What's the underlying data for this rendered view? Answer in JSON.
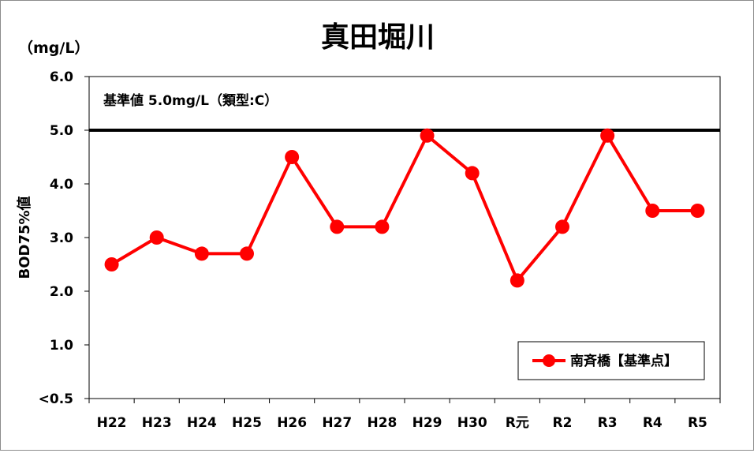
{
  "chart_data": {
    "type": "line",
    "title": "真田堀川",
    "unit_label": "（mg/L）",
    "ylabel": "BOD75%値",
    "xlabel": "",
    "categories": [
      "H22",
      "H23",
      "H24",
      "H25",
      "H26",
      "H27",
      "H28",
      "H29",
      "H30",
      "R元",
      "R2",
      "R3",
      "R4",
      "R5"
    ],
    "series": [
      {
        "name": "南斉橋【基準点】",
        "values": [
          2.5,
          3.0,
          2.7,
          2.7,
          4.5,
          3.2,
          3.2,
          4.9,
          4.2,
          2.2,
          3.2,
          4.9,
          3.5,
          3.5
        ],
        "color": "#ff0000"
      }
    ],
    "ylim": [
      0,
      6
    ],
    "yticks": [
      {
        "value": 0,
        "label": "<0.5"
      },
      {
        "value": 1,
        "label": "1.0"
      },
      {
        "value": 2,
        "label": "2.0"
      },
      {
        "value": 3,
        "label": "3.0"
      },
      {
        "value": 4,
        "label": "4.0"
      },
      {
        "value": 5,
        "label": "5.0"
      },
      {
        "value": 6,
        "label": "6.0"
      }
    ],
    "standard": {
      "value": 5.0,
      "label": "基準値  5.0mg/L（類型:C）",
      "color": "#000000"
    },
    "grid": false,
    "legend_position": "bottom-right"
  }
}
